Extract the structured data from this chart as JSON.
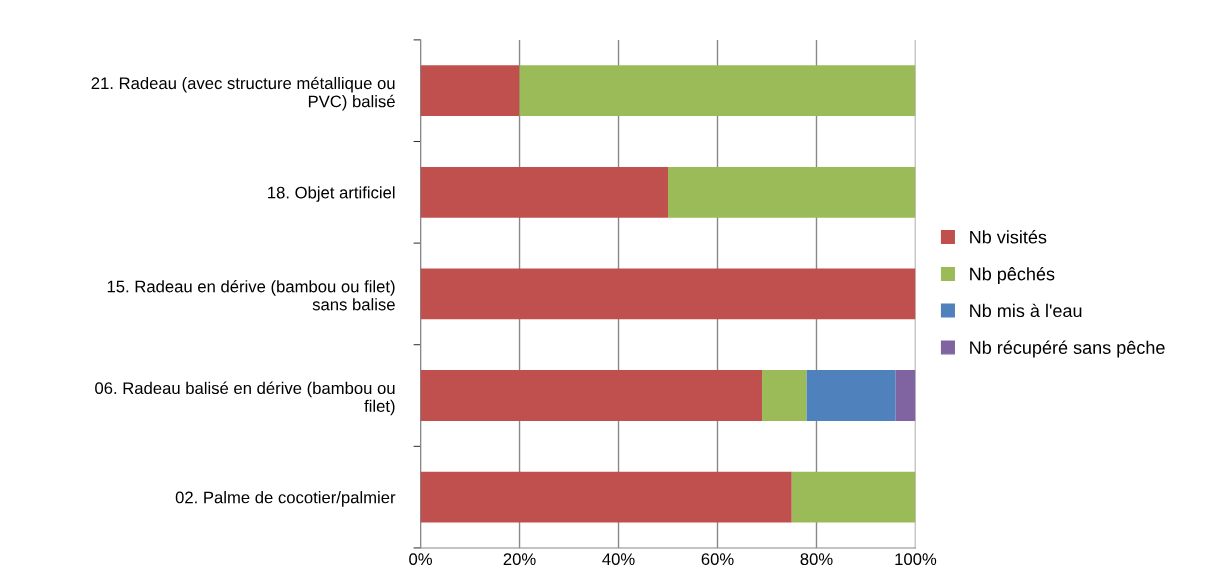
{
  "chart_data": {
    "type": "bar",
    "orientation": "horizontal",
    "stacked": true,
    "categories": [
      "21. Radeau (avec structure métallique ou\nPVC) balisé",
      "18. Objet artificiel",
      "15. Radeau en dérive (bambou ou filet)\nsans balise",
      "06. Radeau balisé en dérive (bambou ou\nfilet)",
      "02. Palme de cocotier/palmier"
    ],
    "series": [
      {
        "name": "Nb visités",
        "color": "#c0504d",
        "values": [
          20,
          50,
          100,
          69,
          75
        ]
      },
      {
        "name": "Nb pêchés",
        "color": "#9bbb59",
        "values": [
          80,
          50,
          0,
          9,
          25
        ]
      },
      {
        "name": "Nb mis à l'eau",
        "color": "#4f81bd",
        "values": [
          0,
          0,
          0,
          18,
          0
        ]
      },
      {
        "name": "Nb récupéré sans pêche",
        "color": "#8064a2",
        "values": [
          0,
          0,
          0,
          4,
          0
        ]
      }
    ],
    "xlim": [
      0,
      100
    ],
    "xticks": [
      {
        "value": 0,
        "label": "0%"
      },
      {
        "value": 20,
        "label": "20%"
      },
      {
        "value": 40,
        "label": "40%"
      },
      {
        "value": 60,
        "label": "60%"
      },
      {
        "value": 80,
        "label": "80%"
      },
      {
        "value": 100,
        "label": "100%"
      }
    ],
    "grid": "x",
    "legend": "right"
  }
}
